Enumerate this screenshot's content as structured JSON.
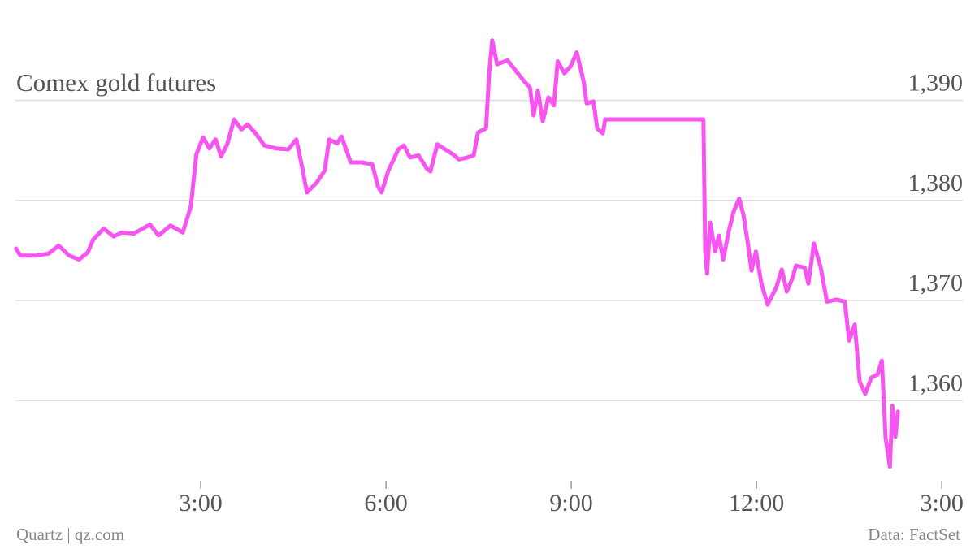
{
  "chart_data": {
    "type": "line",
    "title": "Comex gold futures",
    "x": [
      0.01,
      0.08,
      0.34,
      0.54,
      0.7,
      0.87,
      1.03,
      1.17,
      1.26,
      1.43,
      1.59,
      1.72,
      1.92,
      2.18,
      2.32,
      2.51,
      2.71,
      2.84,
      2.93,
      3.04,
      3.14,
      3.24,
      3.33,
      3.43,
      3.54,
      3.66,
      3.76,
      3.89,
      4.03,
      4.22,
      4.42,
      4.55,
      4.64,
      4.72,
      4.88,
      5.01,
      5.08,
      5.21,
      5.28,
      5.43,
      5.61,
      5.78,
      5.87,
      5.93,
      6.04,
      6.2,
      6.29,
      6.39,
      6.53,
      6.66,
      6.72,
      6.83,
      6.96,
      7.09,
      7.18,
      7.32,
      7.42,
      7.49,
      7.62,
      7.67,
      7.72,
      7.8,
      7.97,
      8.11,
      8.24,
      8.33,
      8.39,
      8.46,
      8.54,
      8.63,
      8.72,
      8.78,
      8.89,
      8.99,
      9.09,
      9.2,
      9.25,
      9.36,
      9.42,
      9.51,
      9.55,
      11.14,
      11.17,
      11.2,
      11.25,
      11.33,
      11.39,
      11.46,
      11.55,
      11.63,
      11.72,
      11.79,
      11.86,
      11.92,
      11.99,
      12.08,
      12.18,
      12.32,
      12.41,
      12.49,
      12.58,
      12.64,
      12.78,
      12.84,
      12.93,
      13.04,
      13.14,
      13.3,
      13.43,
      13.5,
      13.59,
      13.67,
      13.76,
      13.86,
      13.96,
      14.03,
      14.09,
      14.16,
      14.2,
      14.25,
      14.29
    ],
    "values": [
      1375.2,
      1374.5,
      1374.5,
      1374.7,
      1375.5,
      1374.5,
      1374.1,
      1374.8,
      1376.1,
      1377.2,
      1376.4,
      1376.8,
      1376.7,
      1377.6,
      1376.5,
      1377.5,
      1376.8,
      1379.4,
      1384.6,
      1386.3,
      1385.2,
      1386.1,
      1384.4,
      1385.6,
      1388.1,
      1387.1,
      1387.6,
      1386.7,
      1385.5,
      1385.2,
      1385.1,
      1386.1,
      1383.4,
      1380.8,
      1381.8,
      1383.0,
      1386.1,
      1385.7,
      1386.4,
      1383.8,
      1383.8,
      1383.6,
      1381.4,
      1380.8,
      1383.0,
      1385.1,
      1385.5,
      1384.3,
      1384.5,
      1383.2,
      1382.9,
      1385.6,
      1385.1,
      1384.6,
      1384.1,
      1384.3,
      1384.5,
      1386.8,
      1387.2,
      1392.6,
      1396.0,
      1393.6,
      1394.0,
      1392.9,
      1391.9,
      1391.3,
      1388.5,
      1391.0,
      1387.9,
      1390.3,
      1389.5,
      1393.9,
      1392.7,
      1393.4,
      1394.8,
      1391.9,
      1389.7,
      1389.9,
      1387.2,
      1386.7,
      1388.1,
      1388.1,
      1374.9,
      1372.7,
      1377.8,
      1374.9,
      1376.5,
      1374.1,
      1376.9,
      1378.9,
      1380.2,
      1378.5,
      1375.7,
      1373.0,
      1374.9,
      1371.7,
      1369.6,
      1371.3,
      1373.1,
      1370.9,
      1372.2,
      1373.5,
      1373.3,
      1371.7,
      1375.7,
      1373.3,
      1369.9,
      1370.1,
      1369.9,
      1366.0,
      1367.6,
      1361.9,
      1360.7,
      1362.3,
      1362.6,
      1364.0,
      1356.3,
      1353.4,
      1359.5,
      1356.4,
      1358.9
    ],
    "color": "#f655f0",
    "xlim": [
      0,
      15.34
    ],
    "xticks": [
      {
        "value": 3,
        "label": "3:00"
      },
      {
        "value": 6,
        "label": "6:00"
      },
      {
        "value": 9,
        "label": "9:00"
      },
      {
        "value": 12,
        "label": "12:00"
      },
      {
        "value": 15,
        "label": "3:00"
      }
    ],
    "ylim": [
      1352,
      1398
    ],
    "yticks": [
      {
        "value": 1360,
        "label": "1,360"
      },
      {
        "value": 1370,
        "label": "1,370"
      },
      {
        "value": 1380,
        "label": "1,380"
      },
      {
        "value": 1390,
        "label": "1,390"
      }
    ],
    "grid": true,
    "source": "Data: FactSet",
    "credit": "Quartz | qz.com"
  }
}
